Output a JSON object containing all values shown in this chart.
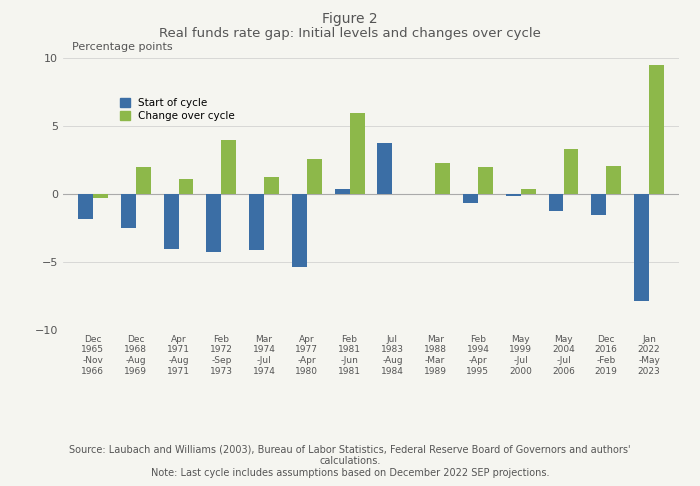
{
  "title_line1": "Figure 2",
  "title_line2": "Real funds rate gap: Initial levels and changes over cycle",
  "ylabel": "Percentage points",
  "ylim": [
    -10,
    10
  ],
  "yticks": [
    -10,
    -5,
    0,
    5,
    10
  ],
  "cat_line1": [
    "Dec",
    "Dec",
    "Apr",
    "Feb",
    "Mar",
    "Apr",
    "Feb",
    "Jul",
    "Mar",
    "Feb",
    "May",
    "May",
    "Dec",
    "Jan"
  ],
  "cat_line2": [
    "1965",
    "1968",
    "1971",
    "1972",
    "1974",
    "1977",
    "1981",
    "1983",
    "1988",
    "1994",
    "1999",
    "2004",
    "2016",
    "2022"
  ],
  "cat_line3": [
    "-Nov",
    "-Aug",
    "-Aug",
    "-Sep",
    "-Jul",
    "-Apr",
    "-Jun",
    "-Aug",
    "-Mar",
    "-Apr",
    "-Jul",
    "-Jul",
    "-Feb",
    "-May"
  ],
  "cat_line4": [
    "1966",
    "1969",
    "1971",
    "1973",
    "1974",
    "1980",
    "1981",
    "1984",
    "1989",
    "1995",
    "2000",
    "2006",
    "2019",
    "2023"
  ],
  "start_of_cycle": [
    -1.8,
    -2.5,
    -4.0,
    -4.2,
    -4.1,
    -5.3,
    0.4,
    3.8,
    0.0,
    -0.6,
    -0.1,
    -1.2,
    -1.5,
    -7.8
  ],
  "change_over_cycle": [
    -0.3,
    2.0,
    1.1,
    4.0,
    1.3,
    2.6,
    6.0,
    0.0,
    2.3,
    2.0,
    0.4,
    3.3,
    2.1,
    9.5
  ],
  "color_start": "#3B6EA5",
  "color_change": "#8DB84A",
  "source_text": "Source: Laubach and Williams (2003), Bureau of Labor Statistics, Federal Reserve Board of Governors and authors'\ncalculations.",
  "note_text": "Note: Last cycle includes assumptions based on December 2022 SEP projections.",
  "background_color": "#F5F5F0",
  "legend_labels": [
    "Start of cycle",
    "Change over cycle"
  ]
}
